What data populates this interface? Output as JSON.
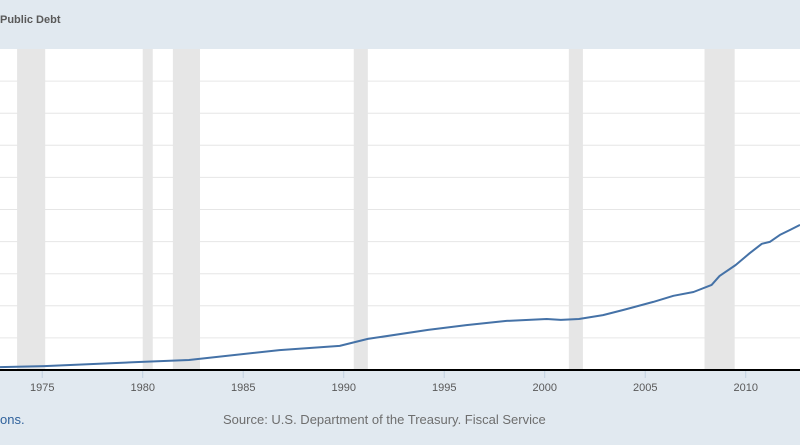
{
  "header": {
    "title": "Public Debt"
  },
  "footer": {
    "link_text": "ons.",
    "source": "Source: U.S. Department of the Treasury. Fiscal Service"
  },
  "colors": {
    "line": "#4572a7",
    "recession": "#e6e6e6",
    "background": "#e1e9f0",
    "plot": "#ffffff",
    "grid": "#e6e6e6",
    "axis": "#000000"
  },
  "chart_data": {
    "type": "line",
    "title": "Public Debt",
    "xlabel": "",
    "ylabel": "",
    "xlim": [
      1972.9,
      2012.7
    ],
    "ylim_fraction": [
      0,
      1
    ],
    "y_gridline_count": 9,
    "grid": true,
    "x_tick_labels": [
      "1975",
      "1980",
      "1985",
      "1990",
      "1995",
      "2000",
      "2005",
      "2010"
    ],
    "x_ticks": [
      1975,
      1980,
      1985,
      1990,
      1995,
      2000,
      2005,
      2010
    ],
    "recessions": [
      [
        1973.75,
        1975.15
      ],
      [
        1980.0,
        1980.5
      ],
      [
        1981.5,
        1982.85
      ],
      [
        1990.5,
        1991.2
      ],
      [
        2001.2,
        2001.9
      ],
      [
        2007.95,
        2009.45
      ]
    ],
    "series": [
      {
        "name": "Public Debt",
        "note": "y values are fraction of the visible vertical axis range (axis tick labels not visible)",
        "x": [
          1972.9,
          1975.1,
          1979.8,
          1982.3,
          1986.8,
          1989.8,
          1991.2,
          1994.2,
          1996.1,
          1998.1,
          2000.1,
          2000.8,
          2001.7,
          2002.9,
          2003.9,
          2005.4,
          2006.4,
          2007.4,
          2008.3,
          2008.7,
          2009.5,
          2010.2,
          2010.8,
          2011.2,
          2011.7,
          2012.2,
          2012.7
        ],
        "y": [
          0.009,
          0.012,
          0.025,
          0.031,
          0.062,
          0.075,
          0.097,
          0.125,
          0.14,
          0.153,
          0.159,
          0.156,
          0.159,
          0.171,
          0.187,
          0.212,
          0.231,
          0.243,
          0.265,
          0.293,
          0.327,
          0.364,
          0.393,
          0.399,
          0.421,
          0.436,
          0.452
        ]
      }
    ]
  }
}
